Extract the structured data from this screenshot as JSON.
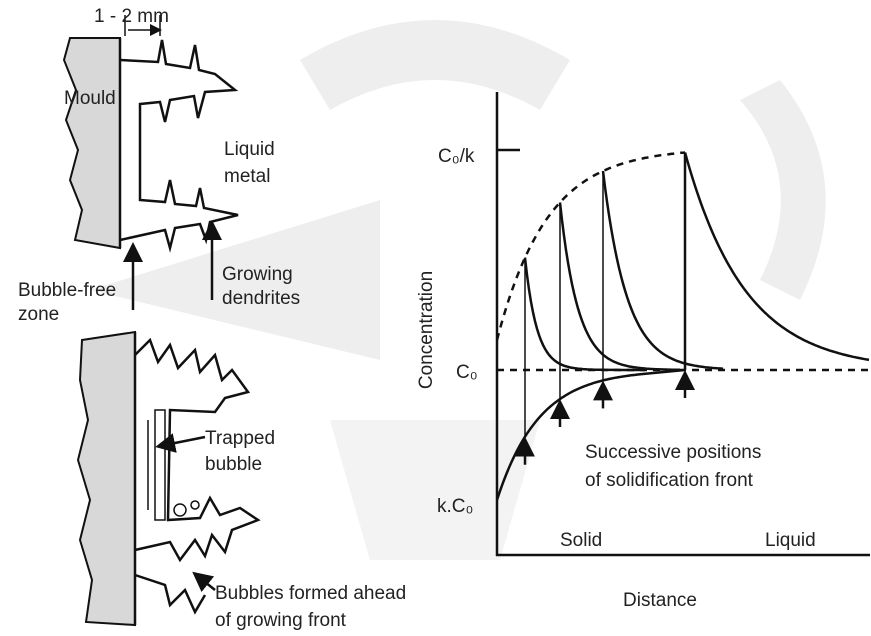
{
  "left_figure": {
    "gap_label": "1 - 2 mm",
    "mould": "Mould",
    "liquid_metal": [
      "Liquid",
      "metal"
    ],
    "bubble_free_zone": [
      "Bubble-free",
      "zone"
    ],
    "growing_dendrites": [
      "Growing",
      "dendrites"
    ],
    "trapped_bubble": [
      "Trapped",
      "bubble"
    ],
    "bubbles_formed": [
      "Bubbles formed ahead",
      "of growing front"
    ]
  },
  "right_figure": {
    "y_axis_label": "Concentration",
    "x_axis_label": "Distance",
    "level_top": "C₀/k",
    "level_mid": "C₀",
    "level_low": "k.C₀",
    "annotation": [
      "Successive positions",
      "of solidification front"
    ],
    "solid": "Solid",
    "liquid": "Liquid"
  }
}
